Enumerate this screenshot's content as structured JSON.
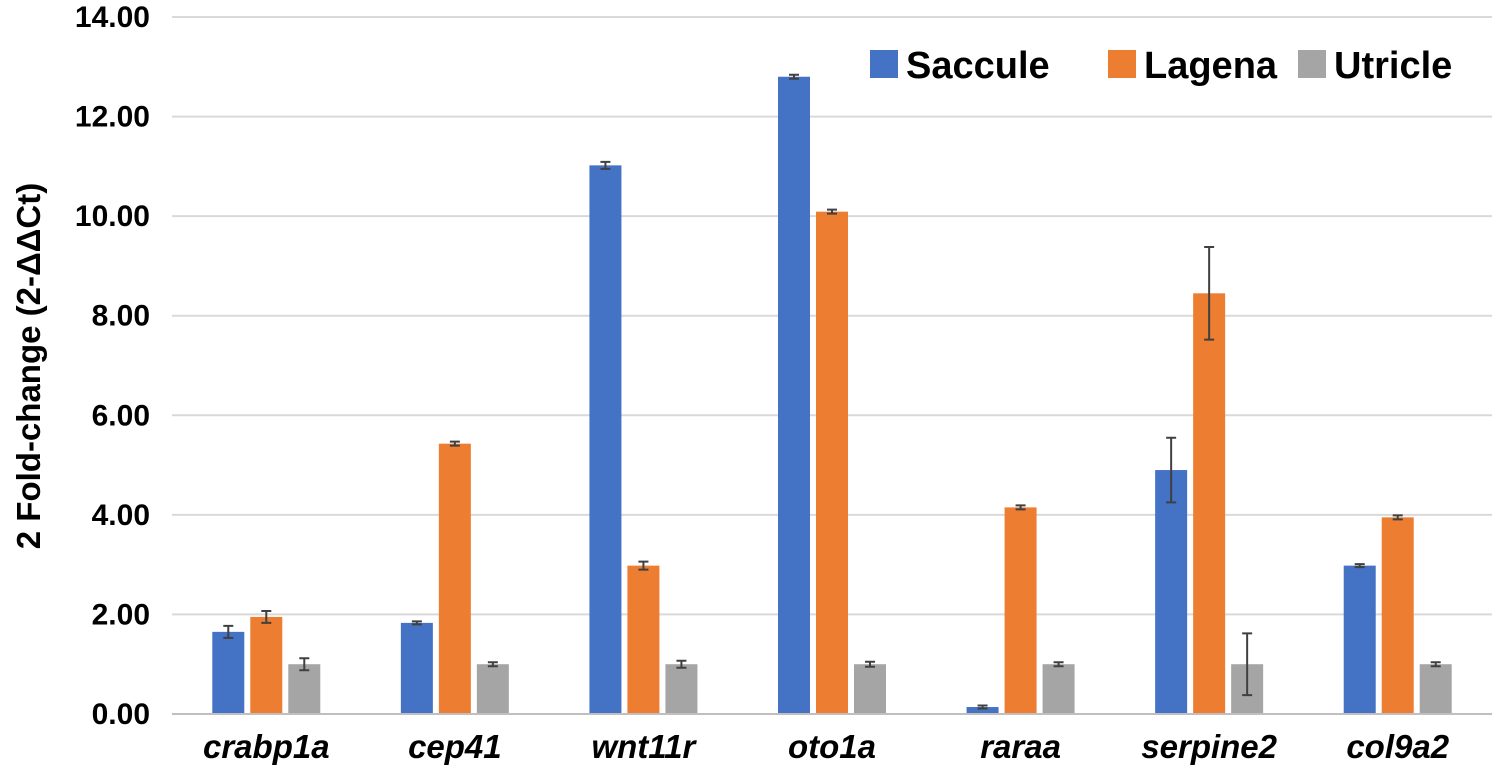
{
  "chart_data": {
    "type": "bar",
    "title": "",
    "xlabel": "",
    "ylabel": "2 Fold-change (2-ΔΔCt)",
    "ylim": [
      0,
      14
    ],
    "yticks": [
      "0.00",
      "2.00",
      "4.00",
      "6.00",
      "8.00",
      "10.00",
      "12.00",
      "14.00"
    ],
    "grid": true,
    "legend_position": "top-right",
    "categories": [
      "crabp1a",
      "cep41",
      "wnt11r",
      "oto1a",
      "raraa",
      "serpine2",
      "col9a2"
    ],
    "series": [
      {
        "name": "Saccule",
        "color": "#4472c4",
        "values": [
          1.65,
          1.83,
          11.02,
          12.8,
          0.14,
          4.9,
          2.98
        ],
        "errors": [
          0.12,
          0.03,
          0.07,
          0.04,
          0.03,
          0.65,
          0.03
        ]
      },
      {
        "name": "Lagena",
        "color": "#ed7d31",
        "values": [
          1.95,
          5.43,
          2.98,
          10.09,
          4.15,
          8.45,
          3.95
        ],
        "errors": [
          0.12,
          0.04,
          0.08,
          0.04,
          0.04,
          0.93,
          0.04
        ]
      },
      {
        "name": "Utricle",
        "color": "#a5a5a5",
        "values": [
          1.0,
          1.0,
          1.0,
          1.0,
          1.0,
          1.0,
          1.0
        ],
        "errors": [
          0.12,
          0.04,
          0.07,
          0.05,
          0.04,
          0.62,
          0.04
        ]
      }
    ]
  }
}
